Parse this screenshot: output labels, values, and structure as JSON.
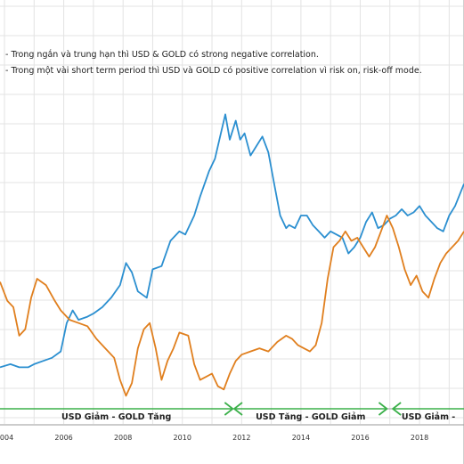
{
  "notes": [
    "- Trong ngắn và trung hạn thì USD & GOLD có strong negative correlation.",
    "- Trong một vài short term period thì USD và GOLD có positive correlation vì risk on, risk-off mode."
  ],
  "phases": [
    {
      "label": "USD Giảm - GOLD Tăng",
      "start": 2003.5,
      "end": 2011.7,
      "arrow_left": false,
      "arrow_right": true
    },
    {
      "label": "USD Tăng - GOLD Giảm",
      "start": 2011.75,
      "end": 2016.9,
      "arrow_left": true,
      "arrow_right": true
    },
    {
      "label": "USD Giảm -",
      "start": 2017.1,
      "end": 2019.5,
      "arrow_left": true,
      "arrow_right": false
    }
  ],
  "colors": {
    "gold_series": "#2b8fd0",
    "usd_series": "#e07f1e",
    "grid": "#e3e3e3",
    "phase_line": "#3bb04a",
    "phase_bar": "#9a9a9a"
  },
  "chart_data": {
    "type": "line",
    "xlabel": "",
    "ylabel": "",
    "xlim": [
      2003.85,
      2019.5
    ],
    "ylim": [
      0,
      1
    ],
    "grid": true,
    "x_ticks": [
      "2004",
      "2006",
      "2008",
      "2010",
      "2012",
      "2014",
      "2016",
      "2018"
    ],
    "x_tick_values": [
      2004,
      2006,
      2008,
      2010,
      2012,
      2014,
      2016,
      2018
    ],
    "y_scale_note": "normalized, no printed y-axis",
    "series": [
      {
        "key": "gold",
        "x": [
          2003.85,
          2004.2,
          2004.5,
          2004.8,
          2005.0,
          2005.3,
          2005.6,
          2005.9,
          2006.1,
          2006.3,
          2006.5,
          2006.8,
          2007.0,
          2007.3,
          2007.6,
          2007.9,
          2008.1,
          2008.3,
          2008.5,
          2008.8,
          2009.0,
          2009.3,
          2009.6,
          2009.9,
          2010.1,
          2010.4,
          2010.6,
          2010.9,
          2011.1,
          2011.3,
          2011.45,
          2011.6,
          2011.8,
          2011.95,
          2012.1,
          2012.3,
          2012.5,
          2012.7,
          2012.9,
          2013.1,
          2013.3,
          2013.5,
          2013.6,
          2013.8,
          2014.0,
          2014.2,
          2014.4,
          2014.6,
          2014.8,
          2015.0,
          2015.2,
          2015.4,
          2015.6,
          2015.8,
          2016.0,
          2016.2,
          2016.4,
          2016.6,
          2016.8,
          2017.0,
          2017.2,
          2017.4,
          2017.6,
          2017.8,
          2018.0,
          2018.2,
          2018.4,
          2018.6,
          2018.8,
          2019.0,
          2019.2,
          2019.5
        ],
        "y": [
          0.12,
          0.13,
          0.12,
          0.12,
          0.13,
          0.14,
          0.15,
          0.17,
          0.26,
          0.3,
          0.27,
          0.28,
          0.29,
          0.31,
          0.34,
          0.38,
          0.45,
          0.42,
          0.36,
          0.34,
          0.43,
          0.44,
          0.52,
          0.55,
          0.54,
          0.6,
          0.66,
          0.74,
          0.78,
          0.86,
          0.92,
          0.84,
          0.9,
          0.84,
          0.86,
          0.79,
          0.82,
          0.85,
          0.8,
          0.7,
          0.6,
          0.56,
          0.57,
          0.56,
          0.6,
          0.6,
          0.57,
          0.55,
          0.53,
          0.55,
          0.54,
          0.53,
          0.48,
          0.5,
          0.53,
          0.58,
          0.61,
          0.56,
          0.57,
          0.59,
          0.6,
          0.62,
          0.6,
          0.61,
          0.63,
          0.6,
          0.58,
          0.56,
          0.55,
          0.6,
          0.63,
          0.7
        ]
      },
      {
        "key": "usd",
        "x": [
          2003.85,
          2004.1,
          2004.3,
          2004.5,
          2004.7,
          2004.9,
          2005.1,
          2005.4,
          2005.7,
          2005.9,
          2006.2,
          2006.5,
          2006.8,
          2007.1,
          2007.4,
          2007.7,
          2007.9,
          2008.1,
          2008.3,
          2008.5,
          2008.7,
          2008.9,
          2009.1,
          2009.3,
          2009.5,
          2009.7,
          2009.9,
          2010.2,
          2010.4,
          2010.6,
          2010.8,
          2011.0,
          2011.2,
          2011.4,
          2011.6,
          2011.8,
          2012.0,
          2012.3,
          2012.6,
          2012.9,
          2013.2,
          2013.5,
          2013.7,
          2013.9,
          2014.1,
          2014.3,
          2014.5,
          2014.7,
          2014.9,
          2015.1,
          2015.3,
          2015.5,
          2015.7,
          2015.9,
          2016.1,
          2016.3,
          2016.5,
          2016.7,
          2016.9,
          2017.1,
          2017.3,
          2017.5,
          2017.7,
          2017.9,
          2018.1,
          2018.3,
          2018.5,
          2018.7,
          2018.9,
          2019.1,
          2019.3,
          2019.5
        ],
        "y": [
          0.39,
          0.33,
          0.31,
          0.22,
          0.24,
          0.34,
          0.4,
          0.38,
          0.33,
          0.3,
          0.27,
          0.26,
          0.25,
          0.21,
          0.18,
          0.15,
          0.08,
          0.03,
          0.07,
          0.18,
          0.24,
          0.26,
          0.18,
          0.08,
          0.14,
          0.18,
          0.23,
          0.22,
          0.13,
          0.08,
          0.09,
          0.1,
          0.06,
          0.05,
          0.1,
          0.14,
          0.16,
          0.17,
          0.18,
          0.17,
          0.2,
          0.22,
          0.21,
          0.19,
          0.18,
          0.17,
          0.19,
          0.26,
          0.4,
          0.5,
          0.52,
          0.55,
          0.52,
          0.53,
          0.5,
          0.47,
          0.5,
          0.55,
          0.6,
          0.56,
          0.5,
          0.43,
          0.38,
          0.41,
          0.36,
          0.34,
          0.4,
          0.45,
          0.48,
          0.5,
          0.52,
          0.55
        ]
      }
    ]
  }
}
